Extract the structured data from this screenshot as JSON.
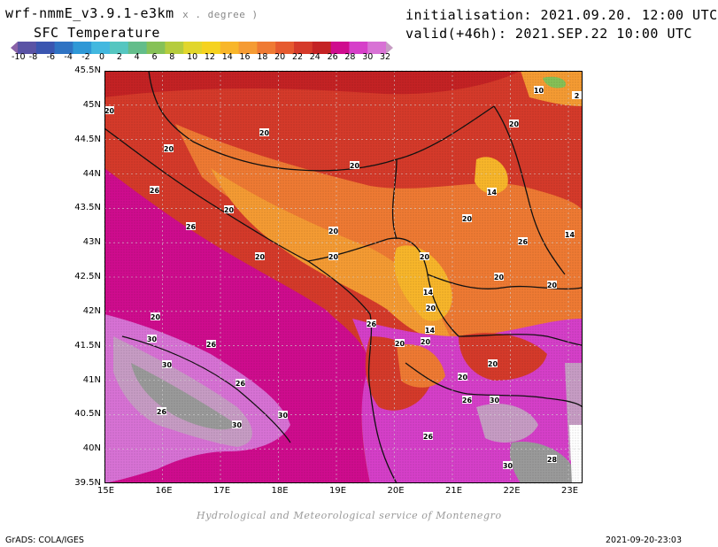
{
  "header": {
    "model": "wrf-nmmE_v3.9.1-e3km",
    "units": "x . degree )",
    "field": "SFC Temperature",
    "initialisation": "initialisation: 2021.09.20. 12:00 UTC",
    "valid": "valid(+46h): 2021.SEP.22 10:00 UTC"
  },
  "colorbar": {
    "labels": [
      "-10",
      "-8",
      "-6",
      "-4",
      "-2",
      "0",
      "2",
      "4",
      "6",
      "8",
      "10",
      "12",
      "14",
      "16",
      "18",
      "20",
      "22",
      "24",
      "26",
      "28",
      "30",
      "32"
    ],
    "colors": [
      "#8a62a8",
      "#5a53a5",
      "#3a55b0",
      "#2f73c3",
      "#2f98d6",
      "#42b8df",
      "#55c6c0",
      "#63bd8a",
      "#86c157",
      "#b5cc3d",
      "#e1d62c",
      "#f5d21f",
      "#f8b62a",
      "#f59b33",
      "#ef7a33",
      "#e65a2f",
      "#d53a2a",
      "#c42224",
      "#cf0c8e",
      "#d63fc9",
      "#d872d5",
      "#c79cc4"
    ]
  },
  "map": {
    "lat_labels": [
      "45.5N",
      "45N",
      "44.5N",
      "44N",
      "43.5N",
      "43N",
      "42.5N",
      "42N",
      "41.5N",
      "41N",
      "40.5N",
      "40N",
      "39.5N"
    ],
    "lon_labels": [
      "15E",
      "16E",
      "17E",
      "18E",
      "19E",
      "20E",
      "21E",
      "22E",
      "23E"
    ],
    "contour_labels": [
      "10",
      "20",
      "20",
      "20",
      "20",
      "20",
      "14",
      "20",
      "20",
      "26",
      "26",
      "26",
      "20",
      "20",
      "20",
      "20",
      "20",
      "14",
      "20",
      "20",
      "26",
      "14",
      "14",
      "20",
      "20",
      "20",
      "20",
      "20",
      "26",
      "30",
      "30",
      "26",
      "26",
      "30",
      "30",
      "30",
      "26",
      "26",
      "30",
      "28",
      "2"
    ]
  },
  "footer": {
    "credit": "Hydrological and Meteorological service of Montenegro",
    "grads": "GrADS: COLA/IGES",
    "timestamp": "2021-09-20-23:03"
  }
}
